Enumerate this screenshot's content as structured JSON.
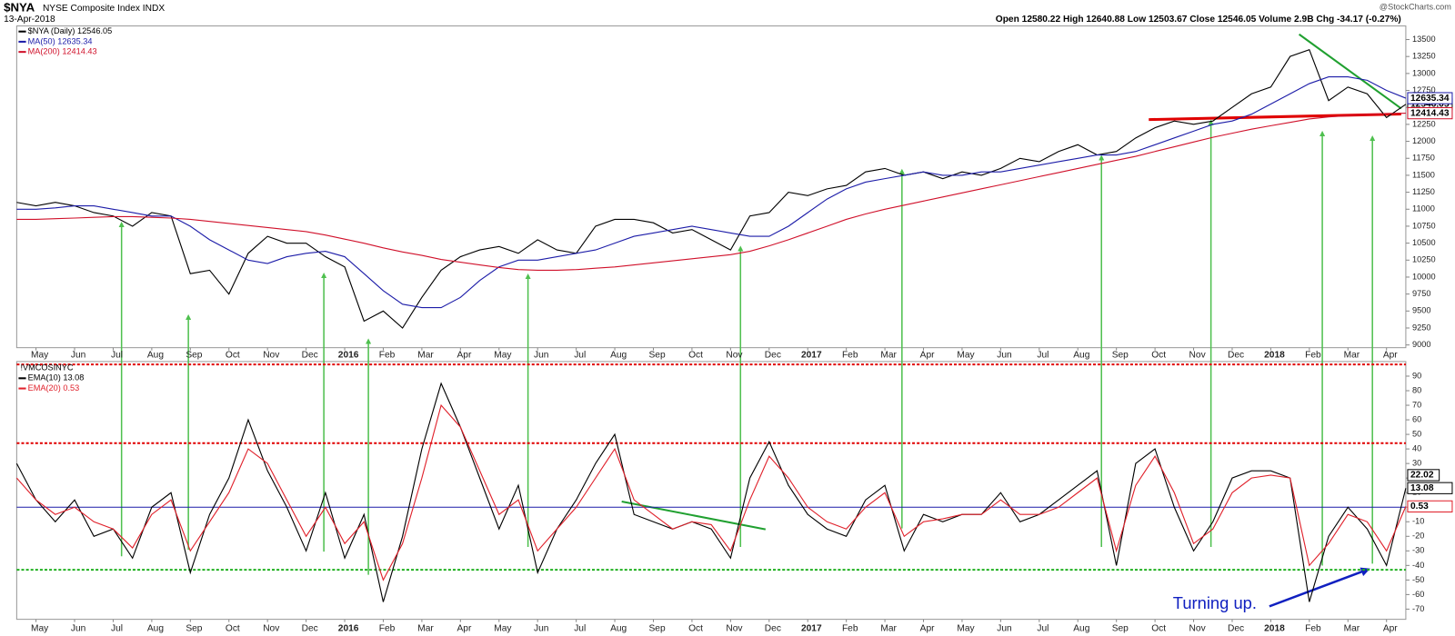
{
  "header": {
    "symbol": "$NYA",
    "name": "NYSE Composite Index INDX",
    "date": "13-Apr-2018",
    "quote": "Open 12580.22  High 12640.88  Low 12503.67  Close 12546.05  Volume 2.9B  Chg -34.17 (-0.27%)",
    "credit": "@StockCharts.com",
    "annotation": "Turning up."
  },
  "chart_data": [
    {
      "type": "line",
      "categories": [
        null,
        "May",
        null,
        "Jun",
        null,
        "Jul",
        null,
        "Aug",
        null,
        "Sep",
        null,
        "Oct",
        null,
        "Nov",
        null,
        "Dec",
        null,
        "2016",
        null,
        "Feb",
        null,
        "Mar",
        null,
        "Apr",
        null,
        "May",
        null,
        "Jun",
        null,
        "Jul",
        null,
        "Aug",
        null,
        "Sep",
        null,
        "Oct",
        null,
        "Nov",
        null,
        "Dec",
        null,
        "2017",
        null,
        "Feb",
        null,
        "Mar",
        null,
        "Apr",
        null,
        "May",
        null,
        "Jun",
        null,
        "Jul",
        null,
        "Aug",
        null,
        "Sep",
        null,
        "Oct",
        null,
        "Nov",
        null,
        "Dec",
        null,
        "2018",
        null,
        "Feb",
        null,
        "Mar",
        null,
        "Apr",
        null
      ],
      "series": [
        {
          "name": "$NYA (Daily) 12546.05",
          "color": "#000000",
          "values": [
            11100,
            11050,
            11100,
            11050,
            10950,
            10900,
            10750,
            10950,
            10900,
            10050,
            10100,
            9750,
            10350,
            10600,
            10500,
            10500,
            10300,
            10150,
            9350,
            9500,
            9250,
            9700,
            10100,
            10300,
            10400,
            10450,
            10350,
            10550,
            10400,
            10350,
            10750,
            10850,
            10850,
            10800,
            10650,
            10700,
            10550,
            10400,
            10900,
            10950,
            11250,
            11200,
            11300,
            11350,
            11550,
            11600,
            11500,
            11550,
            11450,
            11550,
            11500,
            11600,
            11750,
            11700,
            11850,
            11950,
            11800,
            11850,
            12050,
            12200,
            12300,
            12250,
            12300,
            12500,
            12700,
            12800,
            13250,
            13350,
            12600,
            12800,
            12700,
            12350,
            12546.05
          ]
        },
        {
          "name": "MA(50) 12635.34",
          "color": "#1c1ca8",
          "values": [
            11000,
            11000,
            11020,
            11050,
            11050,
            11000,
            10950,
            10900,
            10900,
            10750,
            10550,
            10400,
            10250,
            10200,
            10300,
            10350,
            10380,
            10300,
            10050,
            9800,
            9600,
            9550,
            9550,
            9700,
            9950,
            10150,
            10250,
            10250,
            10300,
            10350,
            10400,
            10500,
            10600,
            10650,
            10700,
            10750,
            10700,
            10650,
            10600,
            10600,
            10750,
            10950,
            11150,
            11300,
            11400,
            11450,
            11500,
            11550,
            11500,
            11500,
            11550,
            11550,
            11600,
            11650,
            11700,
            11750,
            11800,
            11800,
            11850,
            11950,
            12050,
            12150,
            12250,
            12300,
            12400,
            12550,
            12700,
            12850,
            12950,
            12950,
            12900,
            12750,
            12635.34
          ]
        },
        {
          "name": "MA(200) 12414.43",
          "color": "#d0102a",
          "values": [
            10850,
            10850,
            10860,
            10870,
            10880,
            10890,
            10890,
            10880,
            10870,
            10850,
            10820,
            10790,
            10760,
            10730,
            10700,
            10670,
            10620,
            10560,
            10500,
            10430,
            10370,
            10320,
            10260,
            10220,
            10180,
            10140,
            10110,
            10100,
            10100,
            10110,
            10130,
            10150,
            10180,
            10210,
            10240,
            10270,
            10300,
            10330,
            10380,
            10460,
            10550,
            10650,
            10750,
            10850,
            10930,
            11000,
            11060,
            11120,
            11180,
            11240,
            11300,
            11360,
            11420,
            11480,
            11540,
            11600,
            11660,
            11720,
            11780,
            11850,
            11920,
            11990,
            12060,
            12120,
            12180,
            12230,
            12280,
            12330,
            12360,
            12380,
            12395,
            12405,
            12414.43
          ]
        }
      ],
      "ylim": [
        8960,
        13700
      ],
      "yticks": [
        9000,
        9250,
        9500,
        9750,
        10000,
        10250,
        10500,
        10750,
        11000,
        11250,
        11500,
        11750,
        12000,
        12250,
        12500,
        12750,
        13000,
        13250,
        13500
      ]
    },
    {
      "type": "line",
      "title": "!VMCOSINYC",
      "categories": [
        null,
        "May",
        null,
        "Jun",
        null,
        "Jul",
        null,
        "Aug",
        null,
        "Sep",
        null,
        "Oct",
        null,
        "Nov",
        null,
        "Dec",
        null,
        "2016",
        null,
        "Feb",
        null,
        "Mar",
        null,
        "Apr",
        null,
        "May",
        null,
        "Jun",
        null,
        "Jul",
        null,
        "Aug",
        null,
        "Sep",
        null,
        "Oct",
        null,
        "Nov",
        null,
        "Dec",
        null,
        "2017",
        null,
        "Feb",
        null,
        "Mar",
        null,
        "Apr",
        null,
        "May",
        null,
        "Jun",
        null,
        "Jul",
        null,
        "Aug",
        null,
        "Sep",
        null,
        "Oct",
        null,
        "Nov",
        null,
        "Dec",
        null,
        "2018",
        null,
        "Feb",
        null,
        "Mar",
        null,
        "Apr",
        null
      ],
      "series": [
        {
          "name": "EMA(10) 13.08",
          "color": "#000000",
          "values": [
            30,
            5,
            -10,
            5,
            -20,
            -15,
            -35,
            0,
            10,
            -45,
            -5,
            20,
            60,
            25,
            0,
            -30,
            10,
            -35,
            -5,
            -65,
            -20,
            40,
            85,
            55,
            20,
            -15,
            15,
            -45,
            -15,
            5,
            30,
            50,
            -5,
            -10,
            -15,
            -10,
            -15,
            -35,
            20,
            45,
            15,
            -5,
            -15,
            -20,
            5,
            15,
            -30,
            -5,
            -10,
            -5,
            -5,
            10,
            -10,
            -5,
            5,
            15,
            25,
            -40,
            30,
            40,
            0,
            -30,
            -10,
            20,
            25,
            25,
            20,
            -65,
            -20,
            0,
            -15,
            -40,
            13.08
          ]
        },
        {
          "name": "EMA(20) 0.53",
          "color": "#e0202a",
          "values": [
            20,
            5,
            -5,
            0,
            -10,
            -15,
            -28,
            -5,
            5,
            -30,
            -10,
            10,
            40,
            30,
            5,
            -20,
            0,
            -25,
            -10,
            -50,
            -25,
            20,
            70,
            55,
            25,
            -5,
            5,
            -30,
            -15,
            0,
            20,
            40,
            5,
            -5,
            -15,
            -10,
            -12,
            -30,
            5,
            35,
            20,
            0,
            -10,
            -15,
            0,
            10,
            -20,
            -10,
            -8,
            -5,
            -5,
            5,
            -5,
            -5,
            0,
            10,
            20,
            -30,
            15,
            35,
            10,
            -25,
            -15,
            10,
            20,
            22,
            20,
            -40,
            -25,
            -5,
            -10,
            -30,
            0.53
          ]
        }
      ],
      "current_value": 22.02,
      "reference_lines": [
        {
          "value": 98,
          "color": "#e00000",
          "style": "dotted"
        },
        {
          "value": 44,
          "color": "#e00000",
          "style": "dotted"
        },
        {
          "value": 0,
          "color": "#1c1ca8",
          "style": "solid"
        },
        {
          "value": -43,
          "color": "#20b020",
          "style": "dotted"
        }
      ],
      "ylim": [
        -77,
        100
      ],
      "yticks": [
        -70,
        -60,
        -50,
        -40,
        -30,
        -20,
        -10,
        0,
        10,
        20,
        30,
        40,
        50,
        60,
        70,
        80,
        90
      ]
    }
  ]
}
